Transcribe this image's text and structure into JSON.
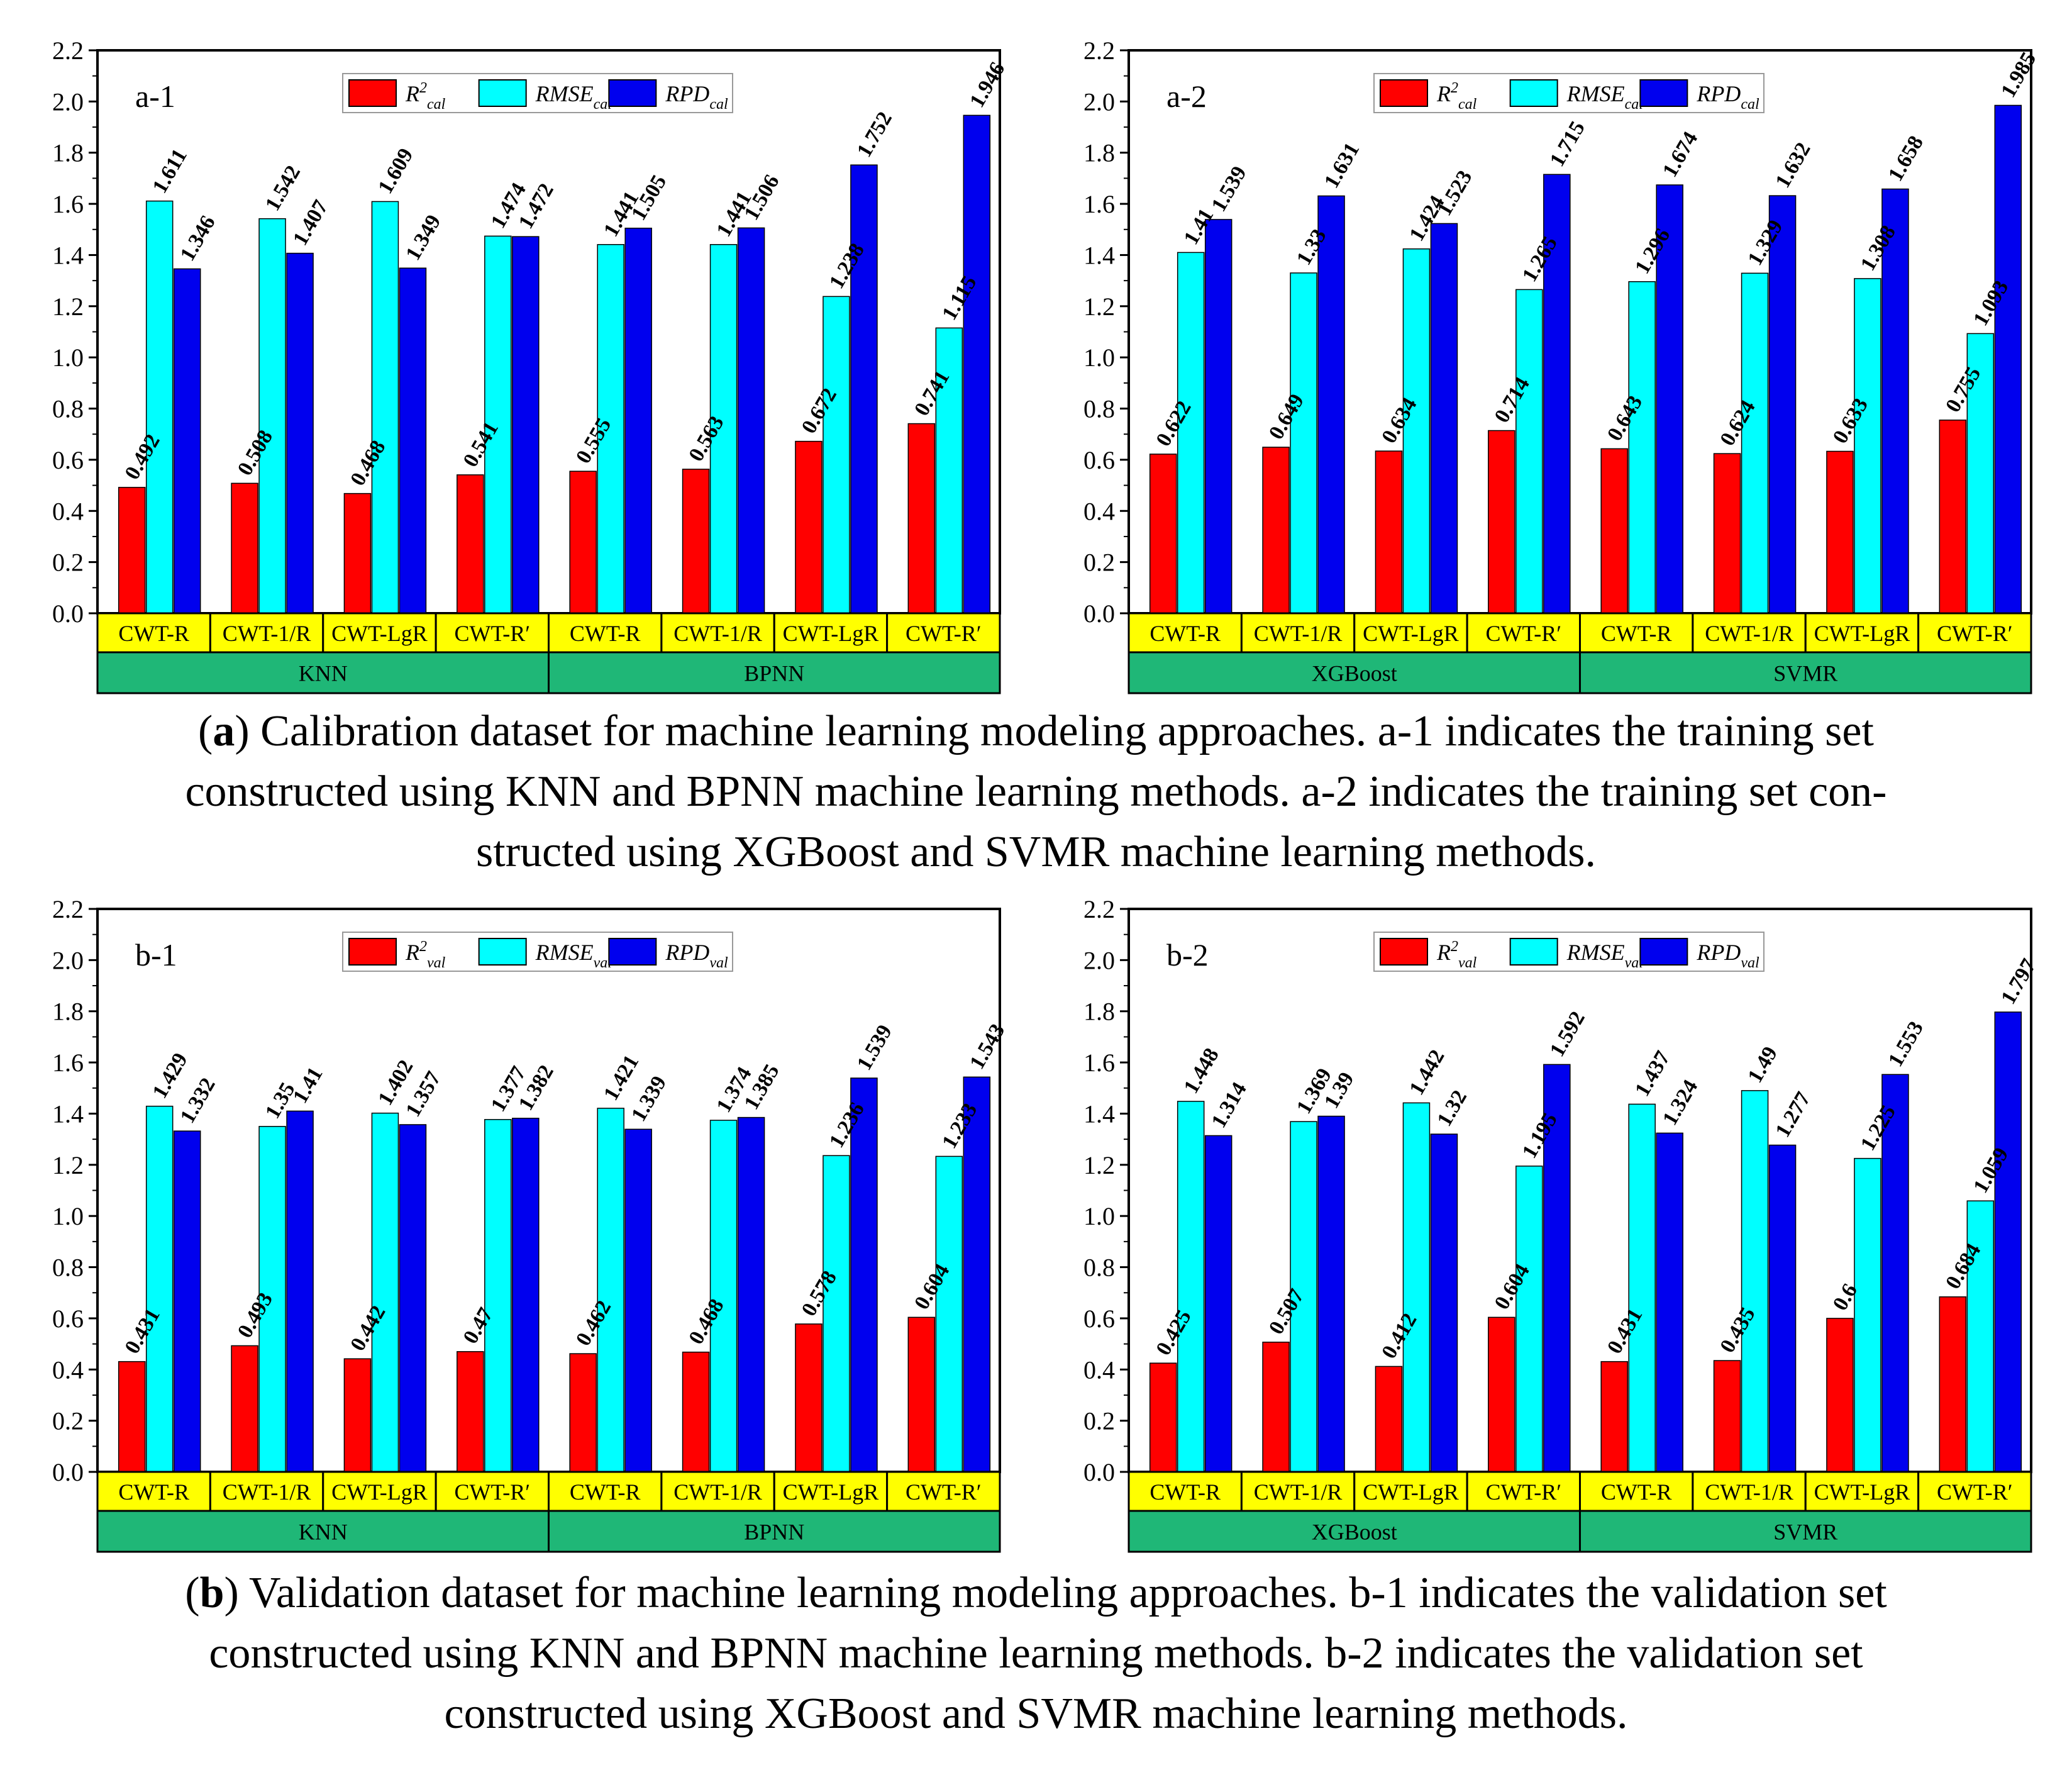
{
  "colors": {
    "r2": "#ff0000",
    "rmse": "#00ffff",
    "rpd": "#0000ee",
    "method_band": "#ffff00",
    "model_band": "#1fb777",
    "frame": "#000000"
  },
  "captions": [
    {
      "tag": "a",
      "lines": [
        {
          "prefix": "(",
          "bold": "a",
          "suffix": ") Calibration dataset for machine learning modeling approaches. a-1 indicates the training set"
        },
        {
          "text": "constructed using KNN and BPNN machine learning methods. a-2 indicates the training set con-"
        },
        {
          "text": "structed using XGBoost and SVMR machine learning methods."
        }
      ]
    },
    {
      "tag": "b",
      "lines": [
        {
          "prefix": "(",
          "bold": "b",
          "suffix": ") Validation dataset for machine learning modeling approaches. b-1 indicates the validation set"
        },
        {
          "text": "constructed using KNN and BPNN machine learning methods. b-2 indicates the validation set"
        },
        {
          "text": "constructed using XGBoost and SVMR machine learning methods."
        }
      ]
    }
  ],
  "chart_data": [
    {
      "id": "a-1",
      "type": "bar",
      "panel_label": "a-1",
      "ylim": [
        0.0,
        2.2
      ],
      "yticks": [
        "0.0",
        "0.2",
        "0.4",
        "0.6",
        "0.8",
        "1.0",
        "1.2",
        "1.4",
        "1.6",
        "1.8",
        "2.0",
        "2.2"
      ],
      "categories": [
        "CWT-R",
        "CWT-1/R",
        "CWT-LgR",
        "CWT-R′",
        "CWT-R",
        "CWT-1/R",
        "CWT-LgR",
        "CWT-R′"
      ],
      "groups": [
        {
          "name": "KNN",
          "span": 4
        },
        {
          "name": "BPNN",
          "span": 4
        }
      ],
      "legend": [
        {
          "key": "r2",
          "main": "R",
          "sup": "2",
          "sub": "cal"
        },
        {
          "key": "rmse",
          "main": "RMSE",
          "sup": "",
          "sub": "cal"
        },
        {
          "key": "rpd",
          "main": "RPD",
          "sup": "",
          "sub": "cal"
        }
      ],
      "series": [
        {
          "name": "R2cal",
          "key": "r2",
          "values": [
            0.492,
            0.508,
            0.468,
            0.541,
            0.555,
            0.563,
            0.672,
            0.741
          ],
          "labels": [
            "0.492",
            "0.508",
            "0.468",
            "0.541",
            "0.555",
            "0.563",
            "0.672",
            "0.741"
          ]
        },
        {
          "name": "RMSEcal",
          "key": "rmse",
          "values": [
            1.611,
            1.542,
            1.609,
            1.474,
            1.441,
            1.441,
            1.238,
            1.115
          ],
          "labels": [
            "1.611",
            "1.542",
            "1.609",
            "1.474",
            "1.441",
            "1.441",
            "1.238",
            "1.115"
          ]
        },
        {
          "name": "RPDcal",
          "key": "rpd",
          "values": [
            1.346,
            1.407,
            1.349,
            1.472,
            1.505,
            1.506,
            1.752,
            1.946
          ],
          "labels": [
            "1.346",
            "1.407",
            "1.349",
            "1.472",
            "1.505",
            "1.506",
            "1.752",
            "1.946"
          ]
        }
      ]
    },
    {
      "id": "a-2",
      "type": "bar",
      "panel_label": "a-2",
      "ylim": [
        0.0,
        2.2
      ],
      "yticks": [
        "0.0",
        "0.2",
        "0.4",
        "0.6",
        "0.8",
        "1.0",
        "1.2",
        "1.4",
        "1.6",
        "1.8",
        "2.0",
        "2.2"
      ],
      "categories": [
        "CWT-R",
        "CWT-1/R",
        "CWT-LgR",
        "CWT-R′",
        "CWT-R",
        "CWT-1/R",
        "CWT-LgR",
        "CWT-R′"
      ],
      "groups": [
        {
          "name": "XGBoost",
          "span": 4
        },
        {
          "name": "SVMR",
          "span": 4
        }
      ],
      "legend": [
        {
          "key": "r2",
          "main": "R",
          "sup": "2",
          "sub": "cal"
        },
        {
          "key": "rmse",
          "main": "RMSE",
          "sup": "",
          "sub": "cal"
        },
        {
          "key": "rpd",
          "main": "RPD",
          "sup": "",
          "sub": "cal"
        }
      ],
      "series": [
        {
          "name": "R2cal",
          "key": "r2",
          "values": [
            0.622,
            0.649,
            0.634,
            0.714,
            0.643,
            0.624,
            0.633,
            0.755
          ],
          "labels": [
            "0.622",
            "0.649",
            "0.634",
            "0.714",
            "0.643",
            "0.624",
            "0.633",
            "0.755"
          ]
        },
        {
          "name": "RMSEcal",
          "key": "rmse",
          "values": [
            1.41,
            1.33,
            1.424,
            1.265,
            1.296,
            1.329,
            1.308,
            1.093
          ],
          "labels": [
            "1.41",
            "1.33",
            "1.424",
            "1.265",
            "1.296",
            "1.329",
            "1.308",
            "1.093"
          ]
        },
        {
          "name": "RPDcal",
          "key": "rpd",
          "values": [
            1.539,
            1.631,
            1.523,
            1.715,
            1.674,
            1.632,
            1.658,
            1.985
          ],
          "labels": [
            "1.539",
            "1.631",
            "1.523",
            "1.715",
            "1.674",
            "1.632",
            "1.658",
            "1.985"
          ]
        }
      ]
    },
    {
      "id": "b-1",
      "type": "bar",
      "panel_label": "b-1",
      "ylim": [
        0.0,
        2.2
      ],
      "yticks": [
        "0.0",
        "0.2",
        "0.4",
        "0.6",
        "0.8",
        "1.0",
        "1.2",
        "1.4",
        "1.6",
        "1.8",
        "2.0",
        "2.2"
      ],
      "categories": [
        "CWT-R",
        "CWT-1/R",
        "CWT-LgR",
        "CWT-R′",
        "CWT-R",
        "CWT-1/R",
        "CWT-LgR",
        "CWT-R′"
      ],
      "groups": [
        {
          "name": "KNN",
          "span": 4
        },
        {
          "name": "BPNN",
          "span": 4
        }
      ],
      "legend": [
        {
          "key": "r2",
          "main": "R",
          "sup": "2",
          "sub": "val"
        },
        {
          "key": "rmse",
          "main": "RMSE",
          "sup": "",
          "sub": "val"
        },
        {
          "key": "rpd",
          "main": "RPD",
          "sup": "",
          "sub": "val"
        }
      ],
      "series": [
        {
          "name": "R2val",
          "key": "r2",
          "values": [
            0.431,
            0.493,
            0.442,
            0.47,
            0.462,
            0.468,
            0.578,
            0.604
          ],
          "labels": [
            "0.431",
            "0.493",
            "0.442",
            "0.47",
            "0.462",
            "0.468",
            "0.578",
            "0.604"
          ]
        },
        {
          "name": "RMSEval",
          "key": "rmse",
          "values": [
            1.429,
            1.35,
            1.402,
            1.377,
            1.421,
            1.374,
            1.236,
            1.233
          ],
          "labels": [
            "1.429",
            "1.35",
            "1.402",
            "1.377",
            "1.421",
            "1.374",
            "1.236",
            "1.233"
          ]
        },
        {
          "name": "RPDval",
          "key": "rpd",
          "values": [
            1.332,
            1.41,
            1.357,
            1.382,
            1.339,
            1.385,
            1.539,
            1.543
          ],
          "labels": [
            "1.332",
            "1.41",
            "1.357",
            "1.382",
            "1.339",
            "1.385",
            "1.539",
            "1.543"
          ]
        }
      ]
    },
    {
      "id": "b-2",
      "type": "bar",
      "panel_label": "b-2",
      "ylim": [
        0.0,
        2.2
      ],
      "yticks": [
        "0.0",
        "0.2",
        "0.4",
        "0.6",
        "0.8",
        "1.0",
        "1.2",
        "1.4",
        "1.6",
        "1.8",
        "2.0",
        "2.2"
      ],
      "categories": [
        "CWT-R",
        "CWT-1/R",
        "CWT-LgR",
        "CWT-R′",
        "CWT-R",
        "CWT-1/R",
        "CWT-LgR",
        "CWT-R′"
      ],
      "groups": [
        {
          "name": "XGBoost",
          "span": 4
        },
        {
          "name": "SVMR",
          "span": 4
        }
      ],
      "legend": [
        {
          "key": "r2",
          "main": "R",
          "sup": "2",
          "sub": "val"
        },
        {
          "key": "rmse",
          "main": "RMSE",
          "sup": "",
          "sub": "val"
        },
        {
          "key": "rpd",
          "main": "RPD",
          "sup": "",
          "sub": "val"
        }
      ],
      "series": [
        {
          "name": "R2val",
          "key": "r2",
          "values": [
            0.425,
            0.507,
            0.412,
            0.604,
            0.431,
            0.435,
            0.6,
            0.684
          ],
          "labels": [
            "0.425",
            "0.507",
            "0.412",
            "0.604",
            "0.431",
            "0.435",
            "0.6",
            "0.684"
          ]
        },
        {
          "name": "RMSEval",
          "key": "rmse",
          "values": [
            1.448,
            1.369,
            1.442,
            1.195,
            1.437,
            1.49,
            1.225,
            1.059
          ],
          "labels": [
            "1.448",
            "1.369",
            "1.442",
            "1.195",
            "1.437",
            "1.49",
            "1.225",
            "1.059"
          ]
        },
        {
          "name": "RPDval",
          "key": "rpd",
          "values": [
            1.314,
            1.39,
            1.32,
            1.592,
            1.324,
            1.277,
            1.553,
            1.797
          ],
          "labels": [
            "1.314",
            "1.39",
            "1.32",
            "1.592",
            "1.324",
            "1.277",
            "1.553",
            "1.797"
          ]
        }
      ]
    }
  ]
}
